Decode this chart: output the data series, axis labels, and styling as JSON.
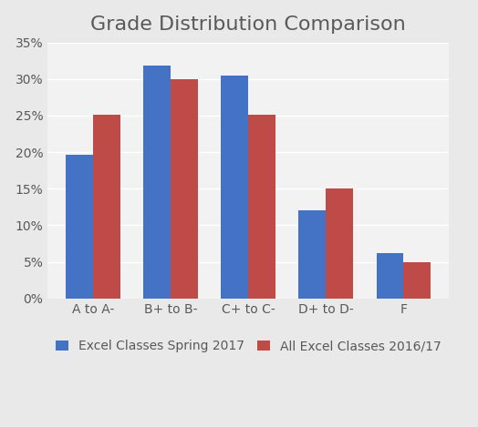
{
  "title": "Grade Distribution Comparison",
  "categories": [
    "A to A-",
    "B+ to B-",
    "C+ to C-",
    "D+ to D-",
    "F"
  ],
  "series": [
    {
      "name": "Excel Classes Spring 2017",
      "values": [
        0.196,
        0.318,
        0.305,
        0.121,
        0.062
      ],
      "color": "#4472C4"
    },
    {
      "name": "All Excel Classes 2016/17",
      "values": [
        0.251,
        0.3,
        0.251,
        0.15,
        0.05
      ],
      "color": "#BE4B48"
    }
  ],
  "ylim": [
    0,
    0.35
  ],
  "yticks": [
    0.0,
    0.05,
    0.1,
    0.15,
    0.2,
    0.25,
    0.3,
    0.35
  ],
  "bar_width": 0.35,
  "outer_bg": "#E9E9E9",
  "plot_bg": "#F2F2F2",
  "grid_color": "#FFFFFF",
  "title_fontsize": 16,
  "tick_fontsize": 10,
  "legend_fontsize": 10,
  "title_color": "#595959"
}
